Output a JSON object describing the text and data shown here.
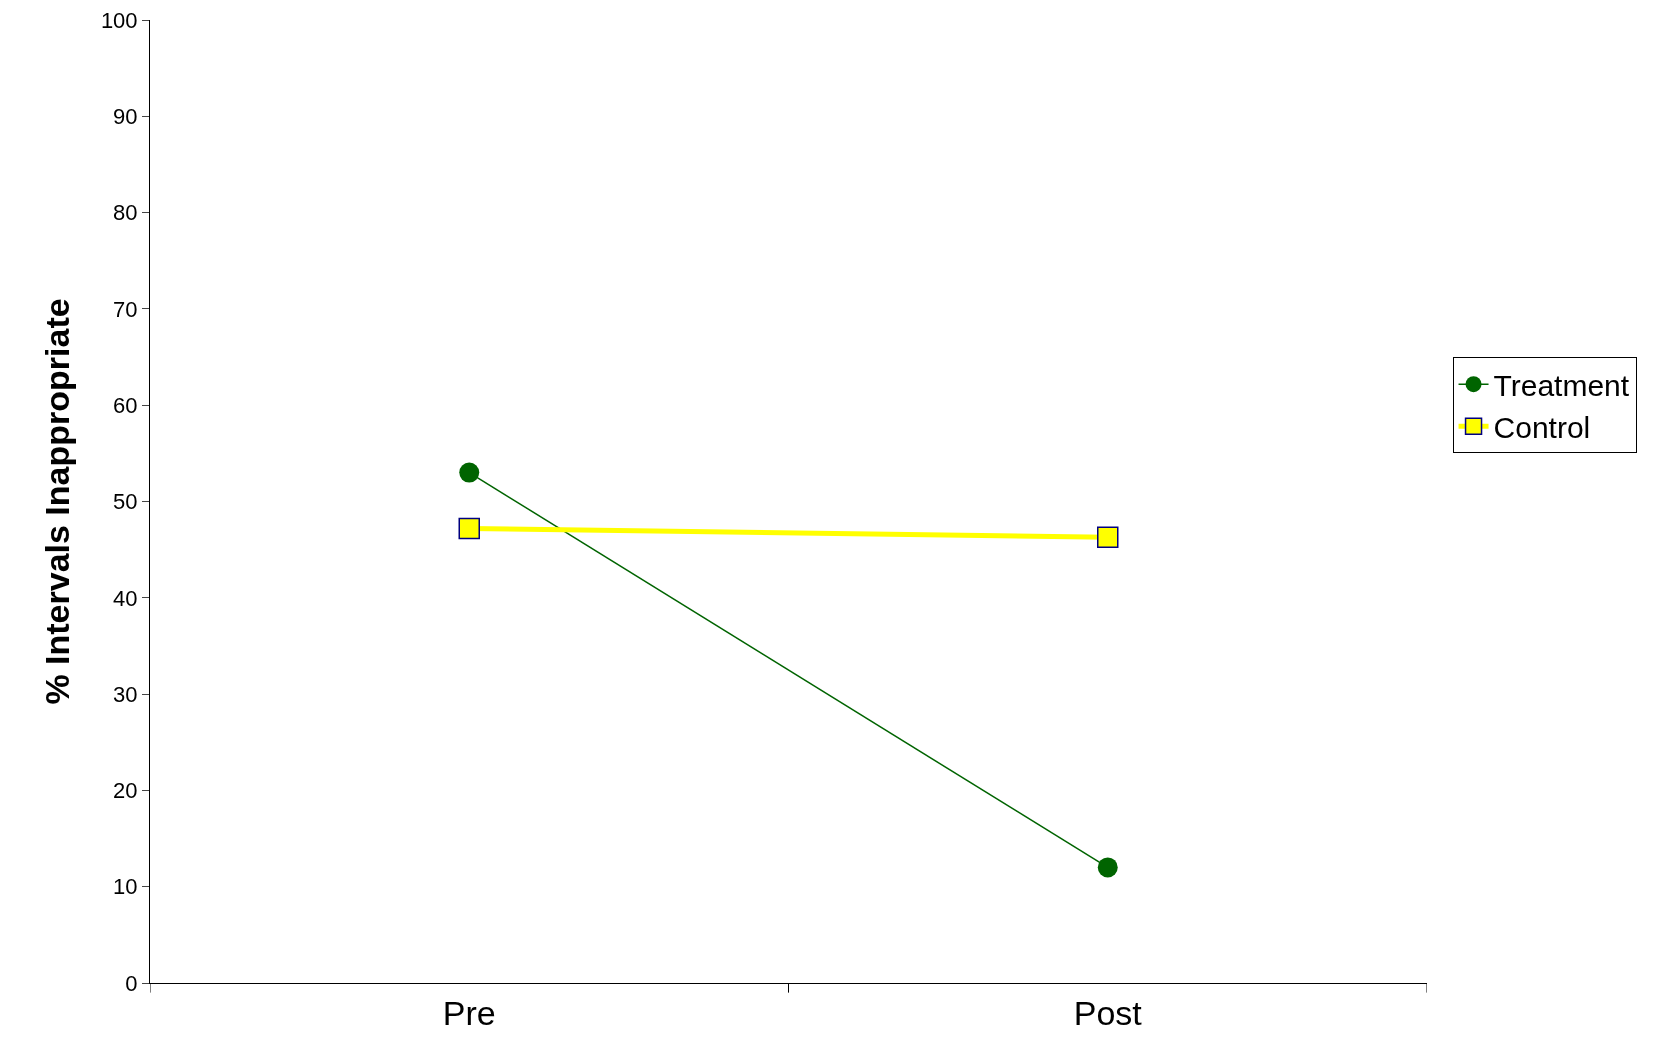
{
  "chart_data": {
    "type": "line",
    "ylabel": "% Intervals Inappropriate",
    "categories": [
      "Pre",
      "Post"
    ],
    "series": [
      {
        "name": "Treatment",
        "color": "#006400",
        "marker": "circle",
        "values": [
          53,
          12
        ]
      },
      {
        "name": "Control",
        "color": "#ffff00",
        "marker": "square",
        "values": [
          47.2,
          46.3
        ]
      }
    ],
    "ylim": [
      0,
      100
    ],
    "yticks": [
      0,
      10,
      20,
      30,
      40,
      50,
      60,
      70,
      80,
      90,
      100
    ],
    "grid": false,
    "legend": "right",
    "line_style": "solid"
  }
}
